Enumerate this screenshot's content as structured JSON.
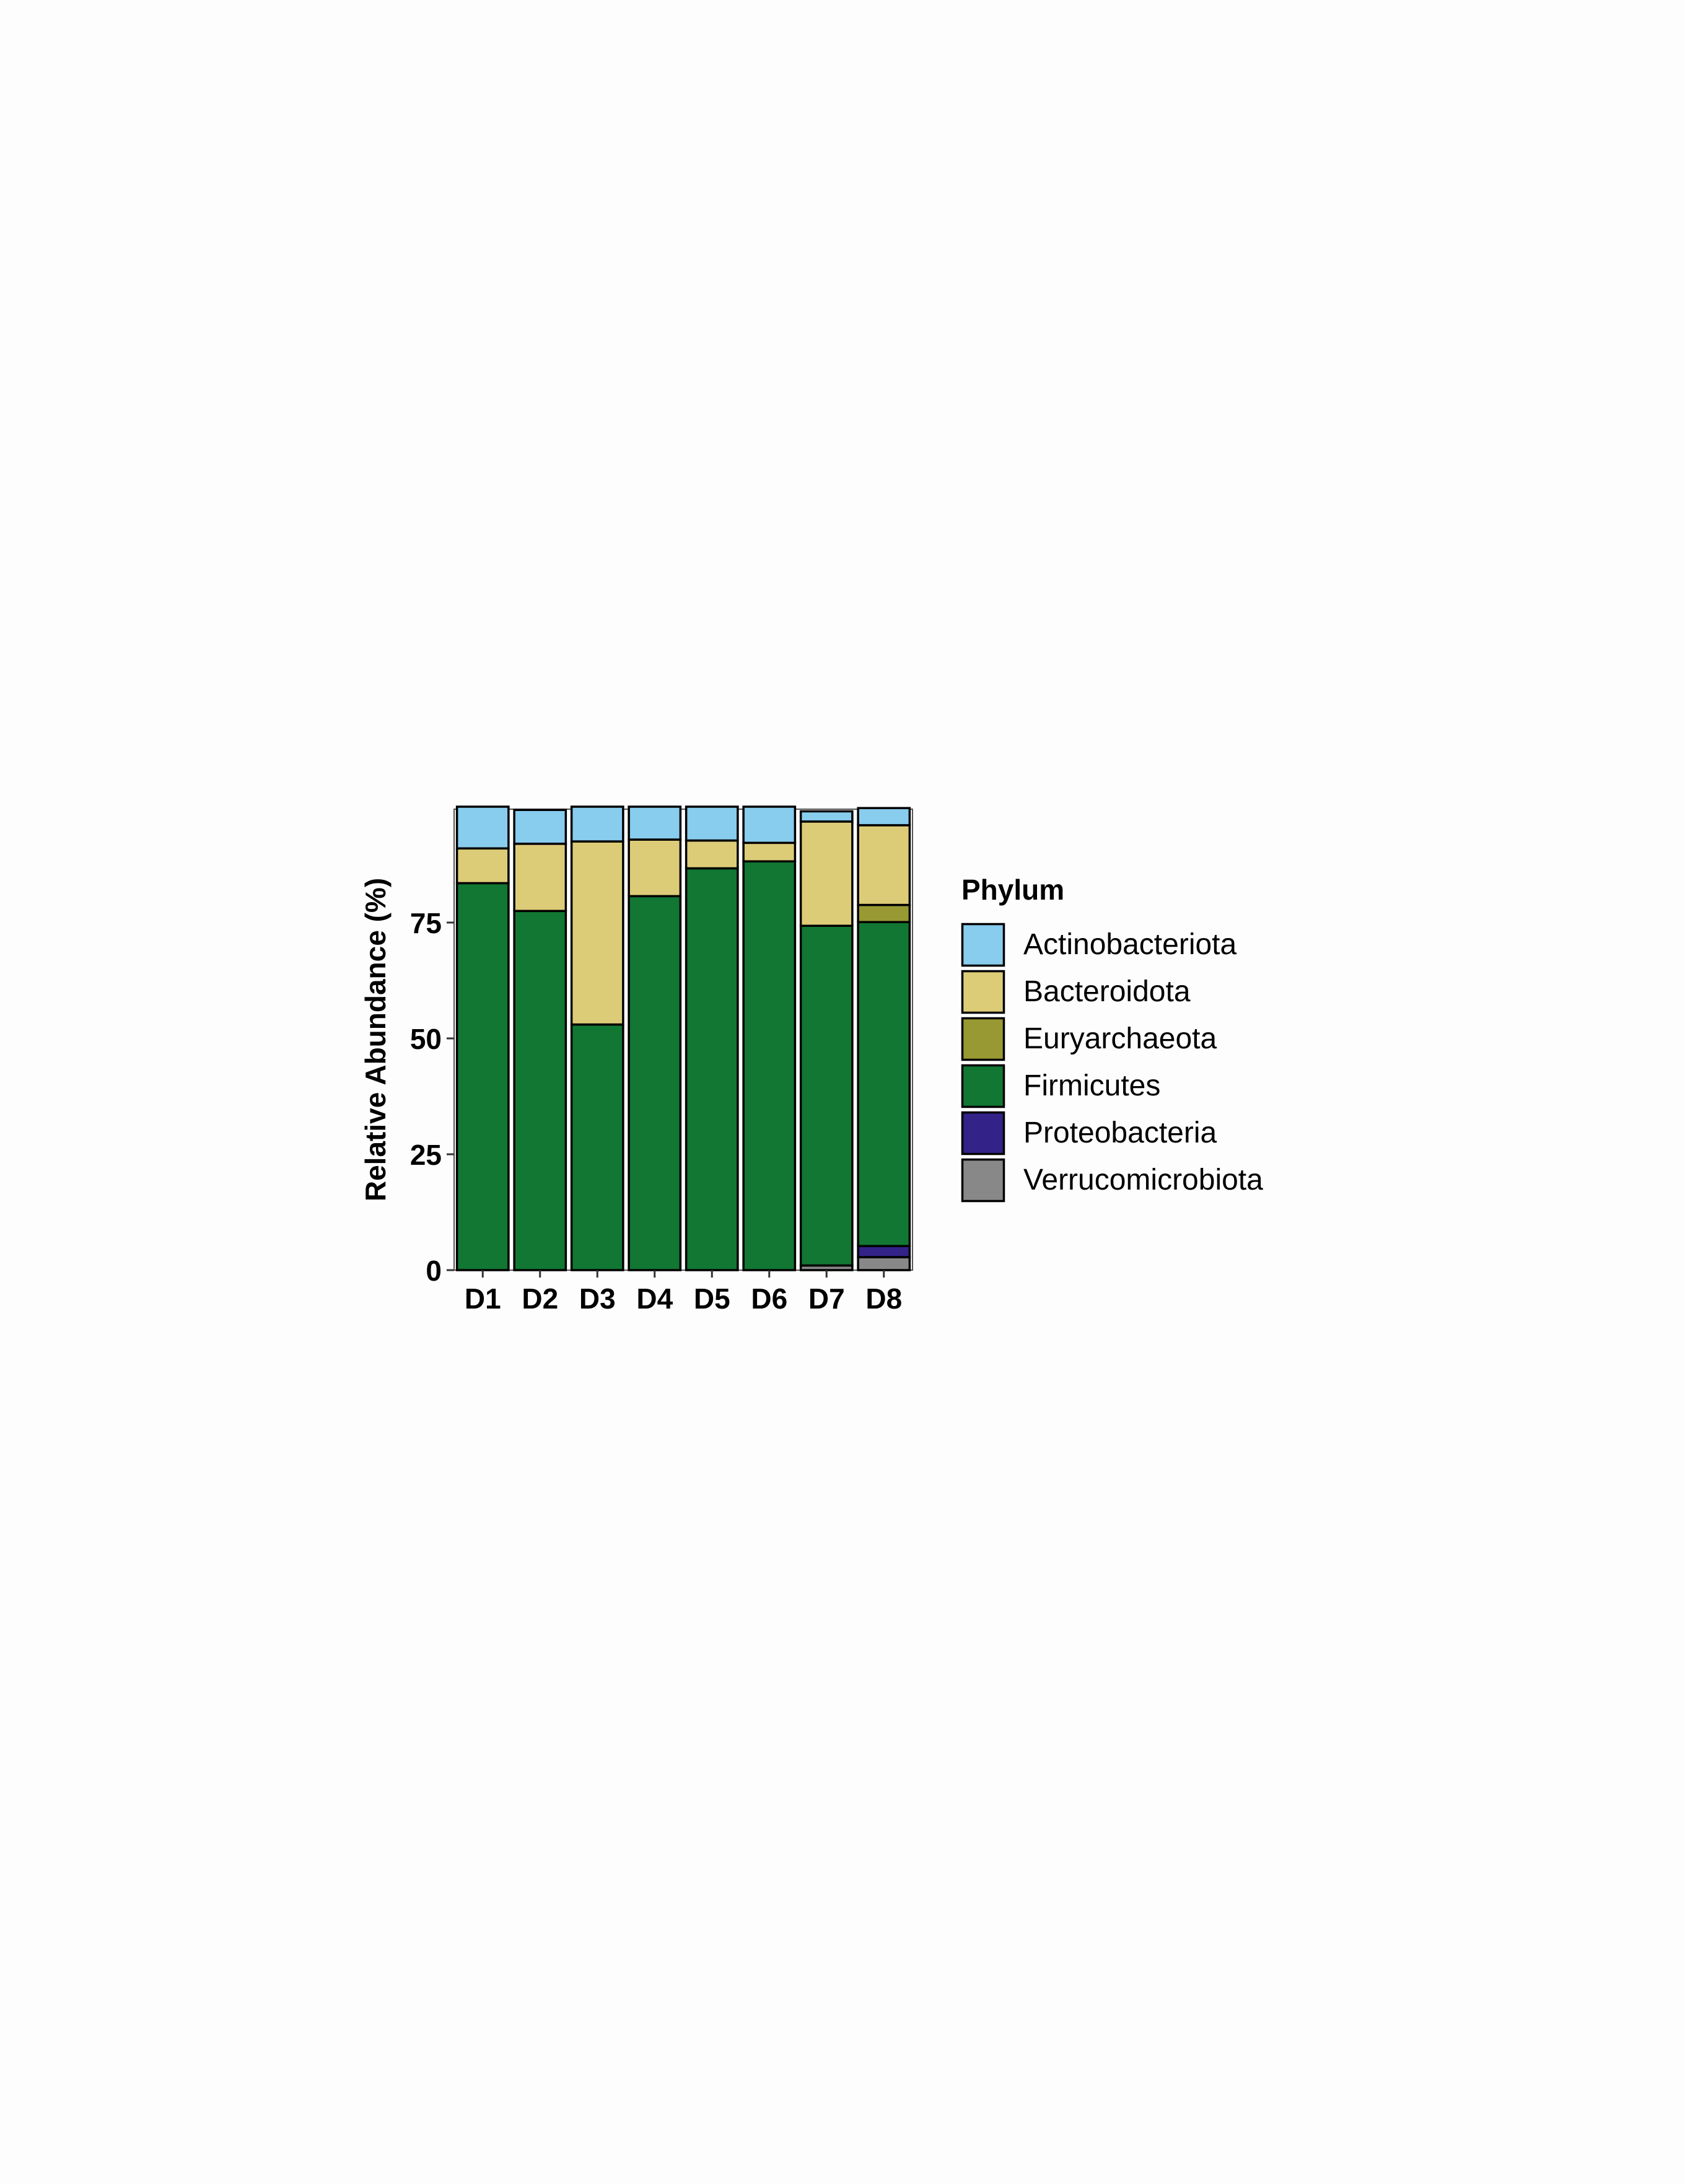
{
  "chart_data": {
    "type": "bar",
    "stacked": true,
    "categories": [
      "D1",
      "D2",
      "D3",
      "D4",
      "D5",
      "D6",
      "D7",
      "D8"
    ],
    "ylabel": "Relative Abundance (%)",
    "xlabel": "",
    "ylim": [
      0,
      100
    ],
    "yticks": [
      0,
      25,
      50,
      75
    ],
    "grid": false,
    "legend": {
      "title": "Phylum",
      "position": "right"
    },
    "series": [
      {
        "name": "Verrucomicrobiota",
        "color": "#888888",
        "values": [
          0,
          0,
          0,
          0,
          0,
          0,
          1.0,
          2.8
        ]
      },
      {
        "name": "Proteobacteria",
        "color": "#332288",
        "values": [
          0,
          0,
          0,
          0,
          0,
          0,
          0,
          2.4
        ]
      },
      {
        "name": "Firmicutes",
        "color": "#117733",
        "values": [
          83.5,
          77.5,
          53.0,
          80.7,
          86.7,
          88.2,
          73.3,
          69.9
        ]
      },
      {
        "name": "Euryarchaeota",
        "color": "#999933",
        "values": [
          0,
          0,
          0,
          0,
          0,
          0,
          0,
          3.7
        ]
      },
      {
        "name": "Bacteroidota",
        "color": "#DDCC77",
        "values": [
          7.5,
          14.5,
          39.5,
          12.2,
          6.0,
          4.0,
          22.5,
          17.2
        ]
      },
      {
        "name": "Actinobacteriota",
        "color": "#88CCEE",
        "values": [
          9.0,
          7.3,
          7.5,
          7.1,
          7.3,
          7.8,
          2.2,
          3.7
        ]
      }
    ],
    "legend_order": [
      "Actinobacteriota",
      "Bacteroidota",
      "Euryarchaeota",
      "Firmicutes",
      "Proteobacteria",
      "Verrucomicrobiota"
    ]
  }
}
